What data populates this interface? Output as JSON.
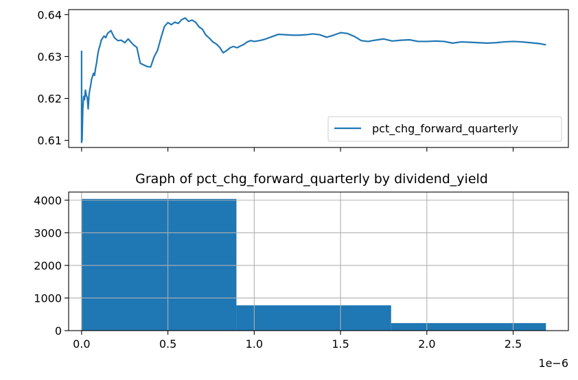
{
  "chart_data": [
    {
      "type": "line",
      "title": "",
      "xlabel": "",
      "ylabel": "",
      "xlim": [
        -7.5e-08,
        2.82e-06
      ],
      "ylim": [
        0.6083,
        0.6412
      ],
      "yticks": [
        0.61,
        0.62,
        0.63,
        0.64
      ],
      "ytick_labels": [
        "0.61",
        "0.62",
        "0.63",
        "0.64"
      ],
      "xticks": [
        0,
        5e-07,
        1e-06,
        1.5e-06,
        2e-06,
        2.5e-06
      ],
      "xtick_labels_visible": false,
      "grid": false,
      "legend_location": "lower right",
      "legend_label": "pct_chg_forward_quarterly",
      "color": "#1f77b4",
      "series": [
        {
          "name": "pct_chg_forward_quarterly",
          "x": [
            0,
            0,
            3e-09,
            7e-09,
            1.2e-08,
            1.7e-08,
            2.2e-08,
            2.8e-08,
            3.3e-08,
            3.8e-08,
            4.3e-08,
            4.8e-08,
            5.3e-08,
            5.8e-08,
            6.3e-08,
            6.9e-08,
            7.5e-08,
            8.1e-08,
            8.7e-08,
            9.3e-08,
            1e-07,
            1.07e-07,
            1.14e-07,
            1.22e-07,
            1.3e-07,
            1.4e-07,
            1.5e-07,
            1.7e-07,
            1.9e-07,
            2.1e-07,
            2.3e-07,
            2.5e-07,
            2.7e-07,
            3e-07,
            3.2e-07,
            3.4e-07,
            3.6e-07,
            3.8e-07,
            4e-07,
            4.2e-07,
            4.4e-07,
            4.6e-07,
            4.8e-07,
            5e-07,
            5.2e-07,
            5.4e-07,
            5.6e-07,
            5.8e-07,
            6e-07,
            6.2e-07,
            6.4e-07,
            6.6e-07,
            6.8e-07,
            7e-07,
            7.2e-07,
            7.4e-07,
            7.6e-07,
            7.8e-07,
            8e-07,
            8.2e-07,
            8.4e-07,
            8.6e-07,
            8.8e-07,
            9e-07,
            9.2e-07,
            9.4e-07,
            9.6e-07,
            9.8e-07,
            1e-06,
            1.03e-06,
            1.06e-06,
            1.1e-06,
            1.14e-06,
            1.18e-06,
            1.22e-06,
            1.26e-06,
            1.3e-06,
            1.34e-06,
            1.38e-06,
            1.42e-06,
            1.46e-06,
            1.5e-06,
            1.54e-06,
            1.58e-06,
            1.62e-06,
            1.66e-06,
            1.7e-06,
            1.75e-06,
            1.8e-06,
            1.85e-06,
            1.9e-06,
            1.95e-06,
            2e-06,
            2.05e-06,
            2.1e-06,
            2.15e-06,
            2.2e-06,
            2.25e-06,
            2.3e-06,
            2.35e-06,
            2.4e-06,
            2.45e-06,
            2.5e-06,
            2.55e-06,
            2.6e-06,
            2.65e-06,
            2.69e-06
          ],
          "y": [
            0.6314,
            0.6095,
            0.6102,
            0.6175,
            0.6205,
            0.6197,
            0.622,
            0.6206,
            0.6202,
            0.6175,
            0.6208,
            0.6222,
            0.6232,
            0.6246,
            0.6252,
            0.626,
            0.6255,
            0.6272,
            0.6285,
            0.6303,
            0.6318,
            0.6327,
            0.6339,
            0.6344,
            0.6349,
            0.6345,
            0.6355,
            0.6362,
            0.6345,
            0.6338,
            0.6339,
            0.6333,
            0.6342,
            0.6328,
            0.6322,
            0.6284,
            0.628,
            0.6276,
            0.6275,
            0.6299,
            0.6315,
            0.6345,
            0.6372,
            0.6381,
            0.6376,
            0.6382,
            0.6379,
            0.6388,
            0.6392,
            0.6384,
            0.6387,
            0.6382,
            0.6371,
            0.6365,
            0.6351,
            0.6344,
            0.6335,
            0.633,
            0.6322,
            0.6309,
            0.6314,
            0.6321,
            0.6324,
            0.6321,
            0.6325,
            0.6329,
            0.6335,
            0.6338,
            0.6336,
            0.6338,
            0.6341,
            0.6347,
            0.6353,
            0.6352,
            0.6351,
            0.6351,
            0.6352,
            0.6354,
            0.6352,
            0.6346,
            0.6351,
            0.6357,
            0.6355,
            0.6348,
            0.6338,
            0.6336,
            0.6339,
            0.6342,
            0.6337,
            0.6339,
            0.634,
            0.6336,
            0.6336,
            0.6337,
            0.6336,
            0.6332,
            0.6335,
            0.6334,
            0.6333,
            0.6332,
            0.6333,
            0.6335,
            0.6336,
            0.6335,
            0.6333,
            0.6331,
            0.6328
          ]
        }
      ]
    },
    {
      "type": "bar",
      "title": "Graph of pct_chg_forward_quarterly by dividend_yield",
      "xlabel": "",
      "ylabel": "",
      "xlim": [
        -7.5e-08,
        2.82e-06
      ],
      "ylim": [
        0,
        4250
      ],
      "xticks": [
        0,
        5e-07,
        1e-06,
        1.5e-06,
        2e-06,
        2.5e-06
      ],
      "xtick_labels": [
        "0.0",
        "0.5",
        "1.0",
        "1.5",
        "2.0",
        "2.5"
      ],
      "x_offset_label": "1e−6",
      "yticks": [
        0,
        1000,
        2000,
        3000,
        4000
      ],
      "ytick_labels": [
        "0",
        "1000",
        "2000",
        "3000",
        "4000"
      ],
      "grid": true,
      "color": "#1f77b4",
      "bins": [
        {
          "x0": 0,
          "x1": 8.97e-07,
          "value": 4040
        },
        {
          "x0": 8.97e-07,
          "x1": 1.793e-06,
          "value": 775
        },
        {
          "x0": 1.793e-06,
          "x1": 2.69e-06,
          "value": 230
        }
      ]
    }
  ]
}
